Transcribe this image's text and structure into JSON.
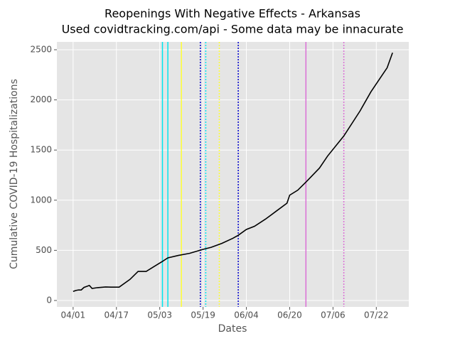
{
  "chart_data": {
    "type": "line",
    "title": "Reopenings With Negative Effects - Arkansas",
    "subtitle": "Used covidtracking.com/api - Some data may be innacurate",
    "x_label": "Dates",
    "y_label": "Cumulative COVID-19 Hospitalizations",
    "x": [
      "04/01",
      "04/02",
      "04/03",
      "04/04",
      "04/05",
      "04/07",
      "04/08",
      "04/10",
      "04/13",
      "04/15",
      "04/18",
      "04/22",
      "04/25",
      "04/28",
      "05/01",
      "05/04",
      "05/06",
      "05/10",
      "05/14",
      "05/19",
      "05/22",
      "05/26",
      "05/30",
      "06/01",
      "06/04",
      "06/07",
      "06/11",
      "06/15",
      "06/19",
      "06/20",
      "06/23",
      "06/26",
      "07/01",
      "07/04",
      "07/10",
      "07/16",
      "07/20",
      "07/24",
      "07/26",
      "07/28"
    ],
    "series": [
      {
        "color": "#000000",
        "values": [
          90,
          100,
          105,
          105,
          130,
          150,
          120,
          128,
          135,
          133,
          133,
          210,
          290,
          290,
          340,
          390,
          425,
          450,
          470,
          510,
          530,
          570,
          620,
          650,
          708,
          740,
          810,
          890,
          970,
          1050,
          1100,
          1180,
          1320,
          1440,
          1640,
          1890,
          2080,
          2240,
          2320,
          2470
        ]
      }
    ],
    "reference_lines": [
      {
        "x": "05/04",
        "color": "#00e5ee",
        "style": "solid"
      },
      {
        "x": "05/06",
        "color": "#00e5ee",
        "style": "solid"
      },
      {
        "x": "05/11",
        "color": "#ffff33",
        "style": "solid"
      },
      {
        "x": "05/18",
        "color": "#0000cd",
        "style": "dotted"
      },
      {
        "x": "05/20",
        "color": "#00e5ee",
        "style": "dotted"
      },
      {
        "x": "05/25",
        "color": "#ffff33",
        "style": "dotted"
      },
      {
        "x": "06/01",
        "color": "#0000cd",
        "style": "dotted"
      },
      {
        "x": "06/26",
        "color": "#da70d6",
        "style": "solid"
      },
      {
        "x": "07/10",
        "color": "#da70d6",
        "style": "dotted"
      }
    ],
    "xlim": [
      "03/26",
      "08/03"
    ],
    "xticks": [
      "04/01",
      "04/17",
      "05/03",
      "05/19",
      "06/04",
      "06/20",
      "07/06",
      "07/22"
    ],
    "ylim": [
      -64,
      2578
    ],
    "yticks": [
      0,
      500,
      1000,
      1500,
      2000,
      2500
    ],
    "grid": true
  }
}
